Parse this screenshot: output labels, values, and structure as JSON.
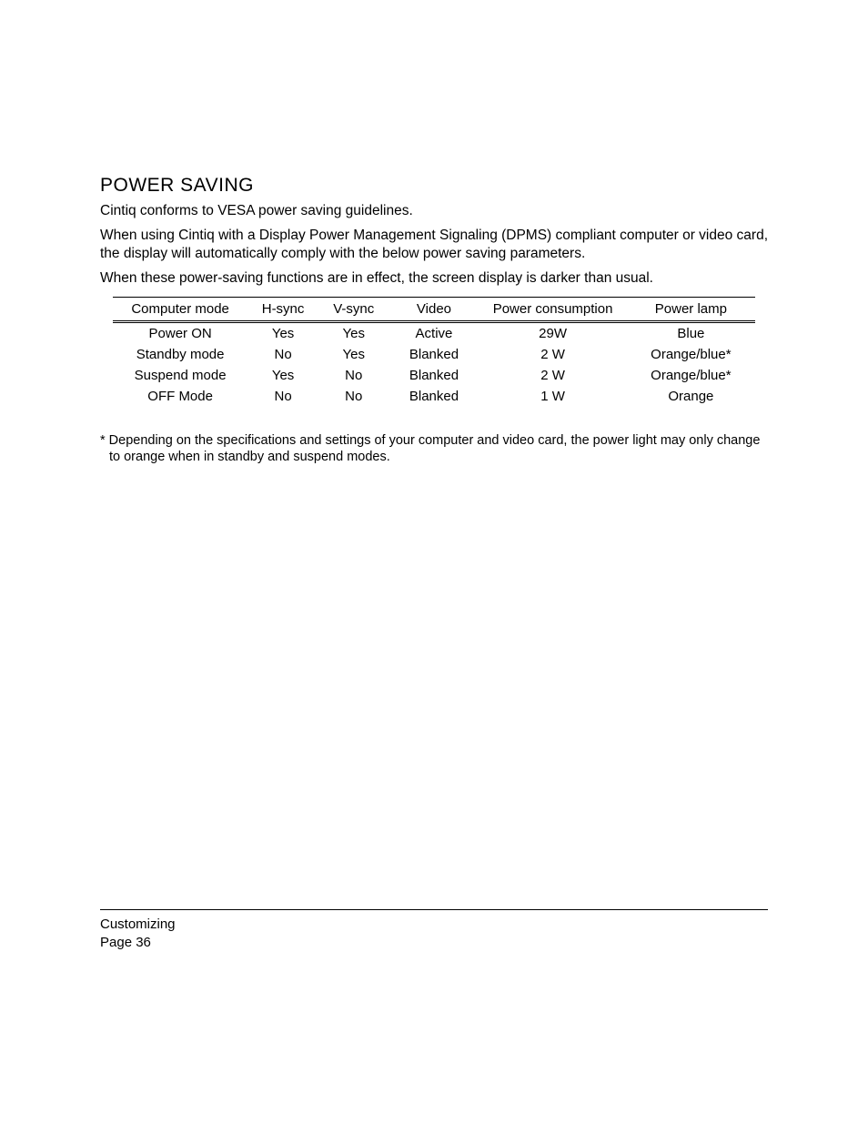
{
  "title": "POWER SAVING",
  "paragraphs": {
    "p1": "Cintiq conforms to VESA power saving guidelines.",
    "p2": "When using Cintiq with a Display Power Management Signaling (DPMS) compliant computer or video card, the display will automatically comply with the below power saving parameters.",
    "p3": "When these power-saving functions are in effect, the screen display is darker than usual."
  },
  "table": {
    "columns": [
      "Computer mode",
      "H-sync",
      "V-sync",
      "Video",
      "Power consumption",
      "Power lamp"
    ],
    "rows": [
      [
        "Power ON",
        "Yes",
        "Yes",
        "Active",
        "29W",
        "Blue"
      ],
      [
        "Standby mode",
        "No",
        "Yes",
        "Blanked",
        "2 W",
        "Orange/blue*"
      ],
      [
        "Suspend mode",
        "Yes",
        "No",
        "Blanked",
        "2 W",
        "Orange/blue*"
      ],
      [
        "OFF Mode",
        "No",
        "No",
        "Blanked",
        "1 W",
        "Orange"
      ]
    ],
    "col_widths_pct": [
      21,
      11,
      11,
      14,
      23,
      20
    ],
    "header_border_color": "#000000",
    "font_size": 15
  },
  "footnote": "* Depending on the specifications and settings of your computer and video card, the power light may only change to orange when in standby and suspend modes.",
  "footer": {
    "section": "Customizing",
    "page_label": "Page  36"
  },
  "colors": {
    "background": "#ffffff",
    "text": "#000000",
    "rule": "#000000"
  }
}
